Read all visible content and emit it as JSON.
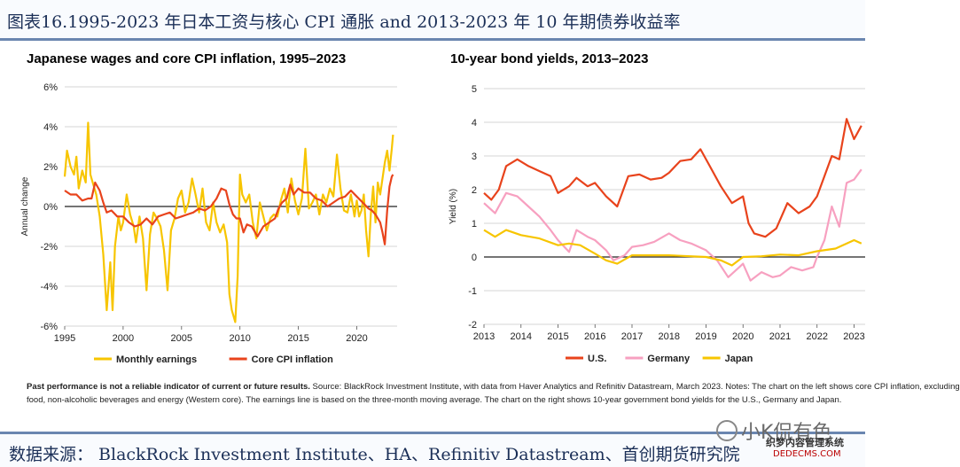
{
  "header": {
    "title": "图表16.1995-2023 年日本工资与核心 CPI 通胀  and 2013-2023 年 10 年期债券收益率"
  },
  "left_chart": {
    "title": "Japanese wages and core CPI inflation, 1995–2023"
  },
  "right_chart": {
    "title": "10-year bond yields, 2013–2023"
  },
  "note": {
    "bold": "Past performance is not a reliable indicator of current or future results.",
    "line1": " Source: BlackRock Investment Institute, with data from Haver Analytics and Refinitiv Datastream, March 2023. Notes: The chart on the left  shows core CPI inflation, excluding",
    "line2": "food, non-alcoholic beverages and energy (Western core). The earnings line is based on the three-month moving average. The chart on the right shows 10-year government bond yields for the U.S., Germany and Japan."
  },
  "source": {
    "text": "数据来源：    BlackRock Investment Institute、HA、Refinitiv Datastream、首创期货研究院"
  },
  "watermark": {
    "text": "小K侃有色",
    "site_cn": "织梦内容管理系统",
    "site_url": "DEDECMS.COM"
  },
  "colors": {
    "yellow": "#f7c500",
    "orange": "#e8431c",
    "pink": "#f7a0c0",
    "grid": "#c8c8c8",
    "header_text": "#1b2f57"
  },
  "chart_data": [
    {
      "type": "line",
      "title": "Japanese wages and core CPI inflation, 1995–2023",
      "xlabel": "",
      "ylabel": "Annual change",
      "xlim": [
        1995,
        2023.3
      ],
      "ylim": [
        -6,
        6
      ],
      "x_ticks": [
        1995,
        2000,
        2005,
        2010,
        2015,
        2020
      ],
      "y_ticks": [
        -6,
        -4,
        -2,
        0,
        2,
        4,
        6
      ],
      "y_tick_labels": [
        "-6%",
        "-4%",
        "-2%",
        "0%",
        "2%",
        "4%",
        "6%"
      ],
      "legend": [
        "Monthly earnings",
        "Core CPI inflation"
      ],
      "legend_position": "bottom",
      "series": [
        {
          "name": "Monthly earnings",
          "color": "#f7c500",
          "x": [
            1995,
            1995.2,
            1995.5,
            1995.8,
            1996,
            1996.2,
            1996.5,
            1996.8,
            1997,
            1997.2,
            1997.4,
            1997.7,
            1998,
            1998.3,
            1998.6,
            1998.9,
            1999.1,
            1999.3,
            1999.6,
            1999.8,
            2000,
            2000.3,
            2000.6,
            2000.9,
            2001.1,
            2001.4,
            2001.7,
            2002,
            2002.3,
            2002.6,
            2002.9,
            2003.2,
            2003.5,
            2003.8,
            2004.1,
            2004.4,
            2004.7,
            2005,
            2005.3,
            2005.6,
            2005.9,
            2006.2,
            2006.5,
            2006.8,
            2007.1,
            2007.4,
            2007.7,
            2008,
            2008.3,
            2008.6,
            2008.9,
            2009.1,
            2009.3,
            2009.6,
            2009.8,
            2010,
            2010.2,
            2010.5,
            2010.8,
            2011.1,
            2011.4,
            2011.7,
            2012,
            2012.3,
            2012.6,
            2012.9,
            2013.2,
            2013.5,
            2013.8,
            2014.1,
            2014.4,
            2014.7,
            2015,
            2015.3,
            2015.6,
            2015.9,
            2016.2,
            2016.5,
            2016.8,
            2017.1,
            2017.4,
            2017.7,
            2018,
            2018.3,
            2018.6,
            2018.9,
            2019.2,
            2019.5,
            2019.8,
            2020,
            2020.2,
            2020.4,
            2020.6,
            2020.8,
            2021,
            2021.2,
            2021.4,
            2021.6,
            2021.8,
            2022,
            2022.2,
            2022.4,
            2022.6,
            2022.8,
            2023,
            2023.1
          ],
          "values": [
            1.5,
            2.8,
            2.0,
            1.6,
            2.5,
            0.9,
            1.8,
            1.2,
            4.2,
            1.6,
            1.2,
            0.6,
            -0.5,
            -2.4,
            -5.2,
            -2.8,
            -5.2,
            -2.0,
            -0.5,
            -1.2,
            -0.8,
            0.6,
            -0.4,
            -1.0,
            -1.8,
            -0.5,
            -1.6,
            -4.2,
            -1.4,
            -0.3,
            -0.6,
            -1.0,
            -2.2,
            -4.2,
            -1.2,
            -0.6,
            0.4,
            0.8,
            -0.3,
            0.2,
            1.4,
            0.6,
            -0.3,
            0.9,
            -0.8,
            -1.2,
            0.2,
            -0.8,
            -1.3,
            -0.9,
            -1.8,
            -4.4,
            -5.2,
            -5.8,
            -3.5,
            1.6,
            0.6,
            0.2,
            0.6,
            -0.8,
            -1.6,
            0.2,
            -0.5,
            -1.2,
            -0.6,
            -0.4,
            -0.5,
            0.3,
            0.9,
            -0.3,
            1.4,
            0.3,
            -0.4,
            0.4,
            2.9,
            -0.1,
            0.2,
            0.6,
            -0.4,
            0.6,
            0.2,
            0.9,
            0.5,
            2.6,
            0.9,
            -0.2,
            -0.3,
            0.6,
            -0.5,
            0.3,
            -0.5,
            -0.2,
            0.6,
            -1.2,
            -2.5,
            -0.4,
            1.0,
            -0.8,
            1.2,
            0.6,
            1.4,
            2.2,
            2.8,
            1.8,
            2.9,
            3.6
          ]
        },
        {
          "name": "Core CPI inflation",
          "color": "#e8431c",
          "x": [
            1995,
            1995.5,
            1996,
            1996.5,
            1997,
            1997.3,
            1997.6,
            1998,
            1998.3,
            1998.6,
            1999,
            1999.5,
            2000,
            2000.5,
            2001,
            2001.5,
            2002,
            2002.5,
            2003,
            2003.5,
            2004,
            2004.5,
            2005,
            2005.5,
            2006,
            2006.5,
            2007,
            2007.5,
            2008,
            2008.4,
            2008.8,
            2009.1,
            2009.4,
            2009.7,
            2010,
            2010.3,
            2010.6,
            2011,
            2011.5,
            2012,
            2012.5,
            2013,
            2013.3,
            2013.6,
            2014,
            2014.3,
            2014.6,
            2015,
            2015.5,
            2016,
            2016.5,
            2017,
            2017.5,
            2018,
            2018.5,
            2019,
            2019.5,
            2020,
            2020.5,
            2021,
            2021.3,
            2021.6,
            2022,
            2022.2,
            2022.4,
            2022.6,
            2022.8,
            2023,
            2023.1
          ],
          "values": [
            0.8,
            0.6,
            0.6,
            0.3,
            0.4,
            0.4,
            1.2,
            0.8,
            0.2,
            -0.3,
            -0.2,
            -0.5,
            -0.5,
            -0.8,
            -1.0,
            -0.9,
            -0.6,
            -0.9,
            -0.5,
            -0.4,
            -0.3,
            -0.6,
            -0.5,
            -0.4,
            -0.3,
            -0.1,
            -0.2,
            0.0,
            0.4,
            0.9,
            0.8,
            0.1,
            -0.4,
            -0.6,
            -0.6,
            -1.3,
            -0.9,
            -1.0,
            -1.5,
            -1.0,
            -0.8,
            -0.6,
            -0.1,
            0.2,
            0.4,
            1.1,
            0.6,
            0.9,
            0.7,
            0.7,
            0.4,
            0.3,
            0.0,
            0.2,
            0.4,
            0.5,
            0.8,
            0.5,
            0.2,
            -0.1,
            -0.2,
            -0.4,
            -0.8,
            -1.3,
            -1.9,
            -0.2,
            1.0,
            1.5,
            1.6
          ]
        }
      ]
    },
    {
      "type": "line",
      "title": "10-year bond yields, 2013–2023",
      "xlabel": "",
      "ylabel": "Yield (%)",
      "xlim": [
        2013,
        2023.3
      ],
      "ylim": [
        -2,
        5
      ],
      "x_ticks": [
        2013,
        2014,
        2015,
        2016,
        2017,
        2018,
        2019,
        2020,
        2021,
        2022,
        2023
      ],
      "x_tick_labels": [
        "2013",
        "2014",
        "2015",
        "2016",
        "2017",
        "2018",
        "2019",
        "2020",
        "2021",
        "2022",
        "2023"
      ],
      "y_ticks": [
        -2,
        -1,
        0,
        1,
        2,
        3,
        4,
        5
      ],
      "legend": [
        "U.S.",
        "Germany",
        "Japan"
      ],
      "legend_position": "bottom",
      "series": [
        {
          "name": "U.S.",
          "color": "#e8431c",
          "x": [
            2013,
            2013.2,
            2013.4,
            2013.6,
            2013.9,
            2014.2,
            2014.5,
            2014.8,
            2015,
            2015.3,
            2015.5,
            2015.8,
            2016,
            2016.3,
            2016.6,
            2016.9,
            2017.2,
            2017.5,
            2017.8,
            2018,
            2018.3,
            2018.6,
            2018.85,
            2019.1,
            2019.4,
            2019.7,
            2020,
            2020.15,
            2020.3,
            2020.6,
            2020.9,
            2021.2,
            2021.5,
            2021.8,
            2022,
            2022.2,
            2022.4,
            2022.6,
            2022.8,
            2023,
            2023.2
          ],
          "values": [
            1.9,
            1.7,
            2.0,
            2.7,
            2.9,
            2.7,
            2.55,
            2.4,
            1.9,
            2.1,
            2.35,
            2.1,
            2.2,
            1.8,
            1.5,
            2.4,
            2.45,
            2.3,
            2.35,
            2.5,
            2.85,
            2.9,
            3.2,
            2.7,
            2.1,
            1.6,
            1.8,
            1.0,
            0.7,
            0.6,
            0.85,
            1.6,
            1.3,
            1.5,
            1.8,
            2.4,
            3.0,
            2.9,
            4.1,
            3.5,
            3.9
          ]
        },
        {
          "name": "Germany",
          "color": "#f7a0c0",
          "x": [
            2013,
            2013.3,
            2013.6,
            2013.9,
            2014.2,
            2014.5,
            2014.8,
            2015,
            2015.3,
            2015.5,
            2015.8,
            2016,
            2016.3,
            2016.5,
            2016.8,
            2017,
            2017.3,
            2017.6,
            2018,
            2018.3,
            2018.6,
            2019,
            2019.3,
            2019.6,
            2019.9,
            2020,
            2020.2,
            2020.5,
            2020.8,
            2021,
            2021.3,
            2021.6,
            2021.9,
            2022,
            2022.2,
            2022.4,
            2022.6,
            2022.8,
            2023,
            2023.2
          ],
          "values": [
            1.6,
            1.3,
            1.9,
            1.8,
            1.5,
            1.2,
            0.8,
            0.5,
            0.15,
            0.8,
            0.6,
            0.5,
            0.2,
            -0.1,
            0.05,
            0.3,
            0.35,
            0.45,
            0.7,
            0.5,
            0.4,
            0.2,
            -0.1,
            -0.6,
            -0.3,
            -0.2,
            -0.7,
            -0.45,
            -0.6,
            -0.55,
            -0.3,
            -0.4,
            -0.3,
            0.0,
            0.5,
            1.5,
            0.9,
            2.2,
            2.3,
            2.6
          ]
        },
        {
          "name": "Japan",
          "color": "#f7c500",
          "x": [
            2013,
            2013.3,
            2013.6,
            2014,
            2014.5,
            2015,
            2015.3,
            2015.6,
            2016,
            2016.3,
            2016.6,
            2017,
            2018,
            2019,
            2019.4,
            2019.7,
            2020,
            2020.5,
            2021,
            2021.5,
            2022,
            2022.5,
            2023,
            2023.2
          ],
          "values": [
            0.8,
            0.6,
            0.8,
            0.65,
            0.55,
            0.35,
            0.4,
            0.35,
            0.1,
            -0.1,
            -0.2,
            0.05,
            0.05,
            0.0,
            -0.1,
            -0.25,
            0.0,
            0.02,
            0.07,
            0.05,
            0.17,
            0.25,
            0.5,
            0.4
          ]
        }
      ]
    }
  ]
}
